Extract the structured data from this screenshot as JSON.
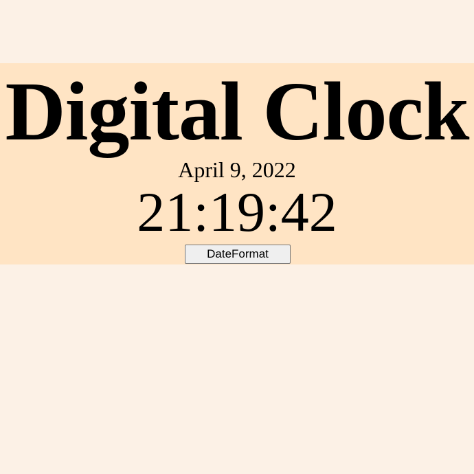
{
  "clock": {
    "title": "Digital Clock",
    "date": "April 9, 2022",
    "time": "21:19:42",
    "format_button_label": "DateFormat"
  },
  "colors": {
    "page_background": "#fcf1e6",
    "panel_background": "#ffe4c4",
    "text": "#000000",
    "button_background": "#efefef",
    "button_border": "#767676"
  }
}
